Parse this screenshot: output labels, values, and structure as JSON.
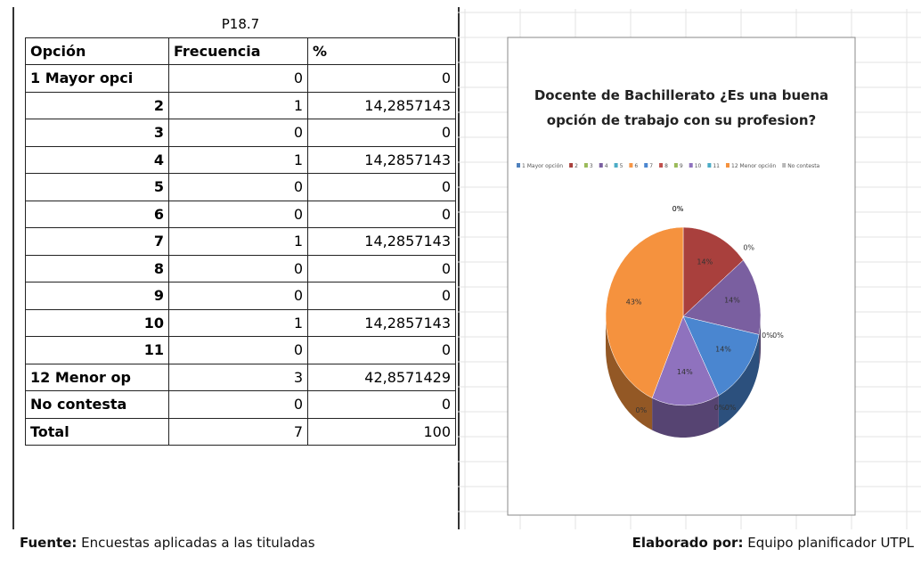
{
  "table": {
    "title": "P18.7",
    "header": [
      "Opción",
      "Frecuencia",
      "%"
    ],
    "rows": [
      [
        "1 Mayor  opci",
        "0",
        "0"
      ],
      [
        "2",
        "1",
        "14,2857143"
      ],
      [
        "3",
        "0",
        "0"
      ],
      [
        "4",
        "1",
        "14,2857143"
      ],
      [
        "5",
        "0",
        "0"
      ],
      [
        "6",
        "0",
        "0"
      ],
      [
        "7",
        "1",
        "14,2857143"
      ],
      [
        "8",
        "0",
        "0"
      ],
      [
        "9",
        "0",
        "0"
      ],
      [
        "10",
        "1",
        "14,2857143"
      ],
      [
        "11",
        "0",
        "0"
      ],
      [
        "12 Menor  op",
        "3",
        "42,8571429"
      ],
      [
        "No contesta",
        "0",
        "0"
      ],
      [
        "Total",
        "7",
        "100"
      ]
    ]
  },
  "chart_data": {
    "type": "pie",
    "title": "Docente de Bachillerato ¿Es una buena opción de trabajo con su profesion?",
    "categories": [
      "1 Mayor opción",
      "2",
      "3",
      "4",
      "5",
      "6",
      "7",
      "8",
      "9",
      "10",
      "11",
      "12 Menor opción",
      "No contesta"
    ],
    "values": [
      0,
      14,
      0,
      14,
      0,
      0,
      14,
      0,
      0,
      14,
      0,
      43,
      0
    ],
    "value_labels": [
      "0%",
      "14%",
      "0%",
      "14%",
      "0%",
      "0%",
      "14%",
      "0%",
      "0%",
      "14%",
      "0%",
      "43%",
      "0%"
    ],
    "colors": [
      "#4f81bd",
      "#a9403d",
      "#9bbb59",
      "#7a5fa0",
      "#4bacc6",
      "#f79646",
      "#4a86d0",
      "#c0504d",
      "#9bbb59",
      "#8f72be",
      "#4bacc6",
      "#f5923e",
      "#b7b7b7"
    ]
  },
  "footer": {
    "source_label": "Fuente:",
    "source": "Encuestas aplicadas a las tituladas",
    "author_label": "Elaborado por:",
    "author": "Equipo planificador UTPL"
  }
}
